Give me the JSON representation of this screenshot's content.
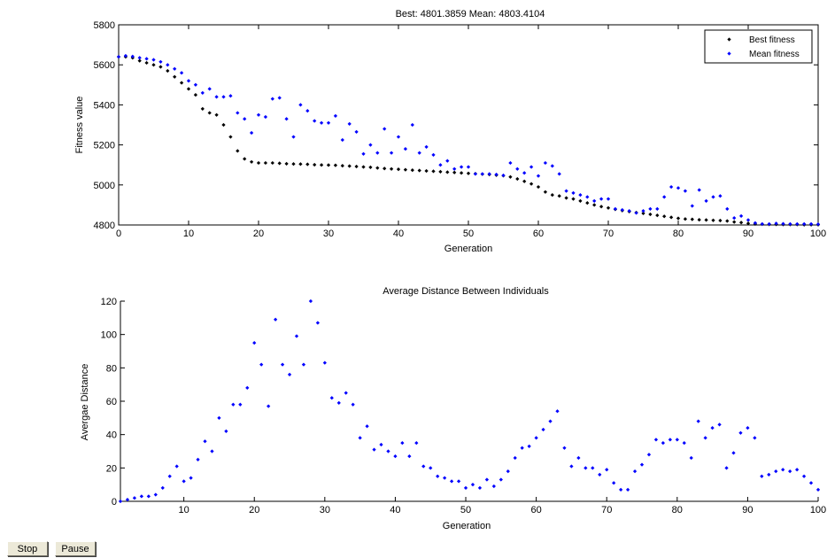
{
  "controls": {
    "stop_label": "Stop",
    "pause_label": "Pause"
  },
  "colors": {
    "best": "#000000",
    "mean": "#0000ff",
    "distance": "#0000ff",
    "axis": "#000000"
  },
  "chart_data": [
    {
      "type": "scatter",
      "title": "Best: 4801.3859 Mean: 4803.4104",
      "xlabel": "Generation",
      "ylabel": "Fitness value",
      "xlim": [
        0,
        100
      ],
      "ylim": [
        4800,
        5800
      ],
      "xticks": [
        0,
        10,
        20,
        30,
        40,
        50,
        60,
        70,
        80,
        90,
        100
      ],
      "yticks": [
        4800,
        5000,
        5200,
        5400,
        5600,
        5800
      ],
      "grid": false,
      "legend": "top-right",
      "series": [
        {
          "name": "Best fitness",
          "color": "#000000",
          "x": [
            0,
            1,
            2,
            3,
            4,
            5,
            6,
            7,
            8,
            9,
            10,
            11,
            12,
            13,
            14,
            15,
            16,
            17,
            18,
            19,
            20,
            21,
            22,
            23,
            24,
            25,
            26,
            27,
            28,
            29,
            30,
            31,
            32,
            33,
            34,
            35,
            36,
            37,
            38,
            39,
            40,
            41,
            42,
            43,
            44,
            45,
            46,
            47,
            48,
            49,
            50,
            51,
            52,
            53,
            54,
            55,
            56,
            57,
            58,
            59,
            60,
            61,
            62,
            63,
            64,
            65,
            66,
            67,
            68,
            69,
            70,
            71,
            72,
            73,
            74,
            75,
            76,
            77,
            78,
            79,
            80,
            81,
            82,
            83,
            84,
            85,
            86,
            87,
            88,
            89,
            90,
            91,
            92,
            93,
            94,
            95,
            96,
            97,
            98,
            99,
            100
          ],
          "values": [
            5640,
            5640,
            5635,
            5620,
            5610,
            5600,
            5590,
            5570,
            5540,
            5510,
            5480,
            5450,
            5380,
            5360,
            5350,
            5300,
            5240,
            5170,
            5130,
            5115,
            5110,
            5110,
            5110,
            5108,
            5106,
            5105,
            5104,
            5103,
            5101,
            5100,
            5099,
            5098,
            5096,
            5094,
            5092,
            5090,
            5088,
            5085,
            5082,
            5080,
            5078,
            5076,
            5074,
            5072,
            5070,
            5068,
            5066,
            5064,
            5062,
            5060,
            5058,
            5056,
            5054,
            5052,
            5049,
            5046,
            5040,
            5030,
            5018,
            5005,
            4990,
            4965,
            4950,
            4945,
            4935,
            4930,
            4920,
            4910,
            4900,
            4892,
            4885,
            4878,
            4872,
            4867,
            4862,
            4858,
            4853,
            4848,
            4843,
            4838,
            4833,
            4830,
            4828,
            4826,
            4825,
            4823,
            4822,
            4820,
            4815,
            4812,
            4808,
            4805,
            4804,
            4803,
            4803,
            4802,
            4802,
            4802,
            4801,
            4801,
            4801
          ]
        },
        {
          "name": "Mean fitness",
          "color": "#0000ff",
          "x": [
            0,
            1,
            2,
            3,
            4,
            5,
            6,
            7,
            8,
            9,
            10,
            11,
            12,
            13,
            14,
            15,
            16,
            17,
            18,
            19,
            20,
            21,
            22,
            23,
            24,
            25,
            26,
            27,
            28,
            29,
            30,
            31,
            32,
            33,
            34,
            35,
            36,
            37,
            38,
            39,
            40,
            41,
            42,
            43,
            44,
            45,
            46,
            47,
            48,
            49,
            50,
            51,
            52,
            53,
            54,
            55,
            56,
            57,
            58,
            59,
            60,
            61,
            62,
            63,
            64,
            65,
            66,
            67,
            68,
            69,
            70,
            71,
            72,
            73,
            74,
            75,
            76,
            77,
            78,
            79,
            80,
            81,
            82,
            83,
            84,
            85,
            86,
            87,
            88,
            89,
            90,
            91,
            92,
            93,
            94,
            95,
            96,
            97,
            98,
            99,
            100
          ],
          "values": [
            5640,
            5645,
            5642,
            5635,
            5630,
            5625,
            5615,
            5600,
            5580,
            5560,
            5520,
            5500,
            5460,
            5480,
            5440,
            5440,
            5445,
            5360,
            5330,
            5260,
            5350,
            5340,
            5430,
            5435,
            5330,
            5240,
            5400,
            5370,
            5320,
            5310,
            5310,
            5345,
            5225,
            5305,
            5265,
            5155,
            5200,
            5160,
            5280,
            5160,
            5240,
            5180,
            5300,
            5160,
            5190,
            5150,
            5100,
            5120,
            5080,
            5090,
            5090,
            5055,
            5055,
            5055,
            5052,
            5048,
            5110,
            5080,
            5060,
            5090,
            5045,
            5110,
            5095,
            5055,
            4970,
            4960,
            4950,
            4940,
            4920,
            4930,
            4930,
            4880,
            4875,
            4870,
            4860,
            4870,
            4880,
            4880,
            4940,
            4990,
            4985,
            4970,
            4895,
            4975,
            4920,
            4940,
            4945,
            4880,
            4835,
            4845,
            4825,
            4810,
            4805,
            4805,
            4808,
            4806,
            4805,
            4805,
            4805,
            4805,
            4804
          ]
        }
      ]
    },
    {
      "type": "scatter",
      "title": "Average Distance Between Individuals",
      "xlabel": "Generation",
      "ylabel": "Avergae Distance",
      "xlim": [
        1,
        100
      ],
      "ylim": [
        0,
        120
      ],
      "xticks": [
        10,
        20,
        30,
        40,
        50,
        60,
        70,
        80,
        90,
        100
      ],
      "yticks": [
        0,
        20,
        40,
        60,
        80,
        100,
        120
      ],
      "grid": false,
      "series": [
        {
          "color": "#0000ff",
          "x": [
            1,
            2,
            3,
            4,
            5,
            6,
            7,
            8,
            9,
            10,
            11,
            12,
            13,
            14,
            15,
            16,
            17,
            18,
            19,
            20,
            21,
            22,
            23,
            24,
            25,
            26,
            27,
            28,
            29,
            30,
            31,
            32,
            33,
            34,
            35,
            36,
            37,
            38,
            39,
            40,
            41,
            42,
            43,
            44,
            45,
            46,
            47,
            48,
            49,
            50,
            51,
            52,
            53,
            54,
            55,
            56,
            57,
            58,
            59,
            60,
            61,
            62,
            63,
            64,
            65,
            66,
            67,
            68,
            69,
            70,
            71,
            72,
            73,
            74,
            75,
            76,
            77,
            78,
            79,
            80,
            81,
            82,
            83,
            84,
            85,
            86,
            87,
            88,
            89,
            90,
            91,
            92,
            93,
            94,
            95,
            96,
            97,
            98,
            99,
            100
          ],
          "values": [
            0,
            1,
            2,
            3,
            3,
            4,
            8,
            15,
            21,
            12,
            14,
            25,
            36,
            30,
            50,
            42,
            58,
            58,
            68,
            95,
            82,
            57,
            109,
            82,
            76,
            99,
            82,
            120,
            107,
            83,
            62,
            59,
            65,
            58,
            38,
            45,
            31,
            34,
            30,
            27,
            35,
            27,
            35,
            21,
            20,
            15,
            14,
            12,
            12,
            8,
            10,
            8,
            13,
            9,
            13,
            18,
            26,
            32,
            33,
            38,
            43,
            48,
            54,
            32,
            21,
            26,
            20,
            20,
            16,
            19,
            11,
            7,
            7,
            18,
            22,
            28,
            37,
            35,
            37,
            37,
            35,
            26,
            48,
            38,
            44,
            46,
            20,
            29,
            41,
            44,
            38,
            15,
            16,
            18,
            19,
            18,
            19,
            15,
            11,
            7
          ]
        }
      ]
    }
  ]
}
